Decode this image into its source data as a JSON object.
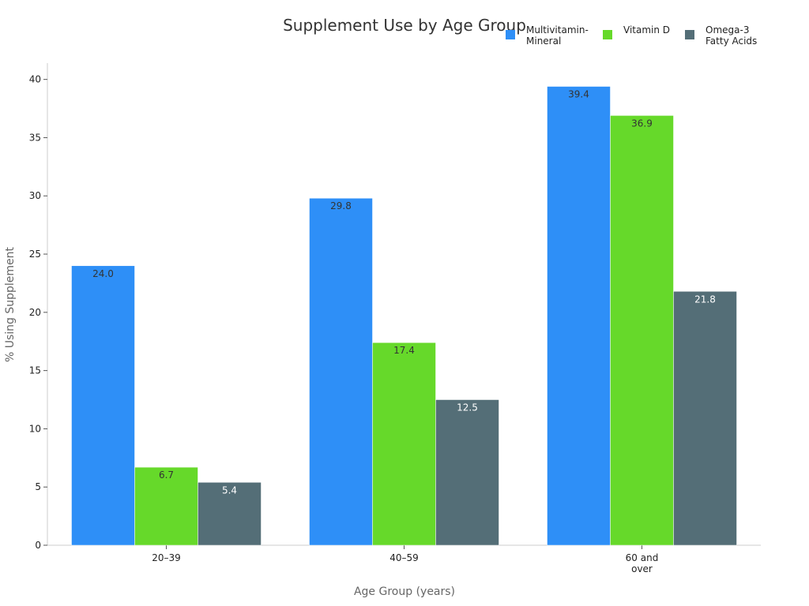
{
  "chart_data": {
    "type": "bar",
    "title": "Supplement Use by Age Group",
    "x_label": "Age Group (years)",
    "y_label": "% Using Supplement",
    "categories": [
      "20–39",
      "40–59",
      "60 and\nover"
    ],
    "series": [
      {
        "name": "Multivitamin-\nMineral",
        "color": "#2e8ff7",
        "values": [
          24.0,
          29.8,
          39.4
        ],
        "value_labels": [
          "24.0",
          "29.8",
          "39.4"
        ]
      },
      {
        "name": "Vitamin D",
        "color": "#66d92a",
        "values": [
          6.7,
          17.4,
          36.9
        ],
        "value_labels": [
          "6.7",
          "17.4",
          "36.9"
        ]
      },
      {
        "name": "Omega-3\nFatty Acids",
        "color": "#546e77",
        "values": [
          5.4,
          12.5,
          21.8
        ],
        "value_labels": [
          "5.4",
          "12.5",
          "21.8"
        ]
      }
    ],
    "ylim": [
      0,
      41.4
    ],
    "yticks": [
      0,
      5,
      10,
      15,
      20,
      25,
      30,
      35,
      40
    ],
    "grid": false,
    "legend": "top-right"
  }
}
